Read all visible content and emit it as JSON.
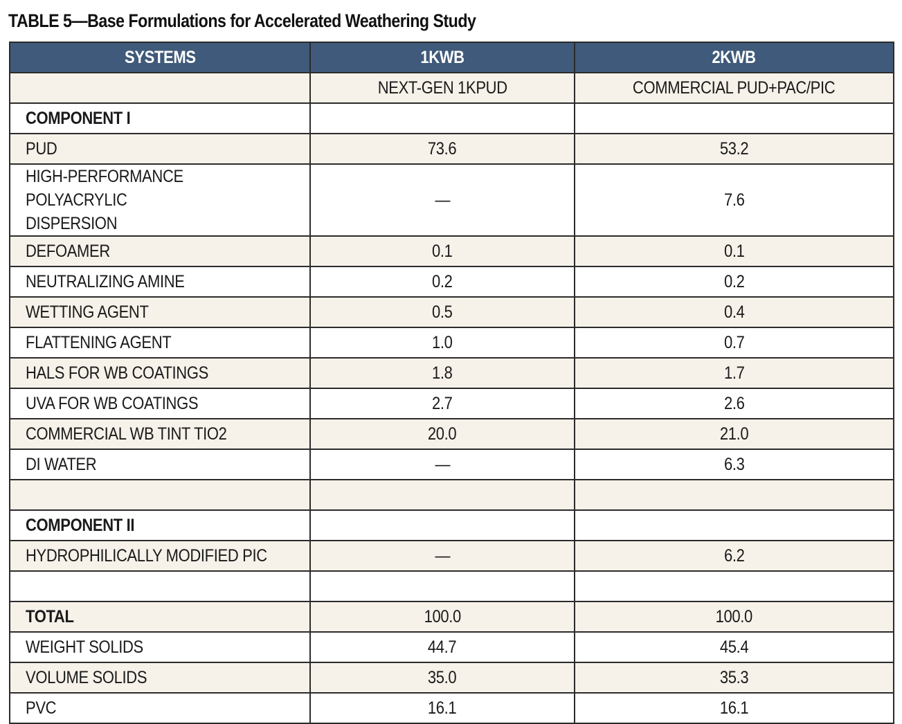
{
  "title": "TABLE 5—Base Formulations for Accelerated Weathering Study",
  "columns": [
    "SYSTEMS",
    "1KWB",
    "2KWB"
  ],
  "subheader": [
    "",
    "NEXT-GEN 1KPUD",
    "COMMERCIAL PUD+PAC/PIC"
  ],
  "rows": [
    {
      "label": "COMPONENT I",
      "v1": "",
      "v2": ""
    },
    {
      "label": "PUD",
      "v1": "73.6",
      "v2": "53.2"
    },
    {
      "label_line1": "HIGH-PERFORMANCE POLYACRYLIC",
      "label_line2": "DISPERSION",
      "v1": "—",
      "v2": "7.6"
    },
    {
      "label": "DEFOAMER",
      "v1": "0.1",
      "v2": "0.1"
    },
    {
      "label": "NEUTRALIZING AMINE",
      "v1": "0.2",
      "v2": "0.2"
    },
    {
      "label": "WETTING AGENT",
      "v1": "0.5",
      "v2": "0.4"
    },
    {
      "label": "FLATTENING AGENT",
      "v1": "1.0",
      "v2": "0.7"
    },
    {
      "label": "HALS FOR WB COATINGS",
      "v1": "1.8",
      "v2": "1.7"
    },
    {
      "label": "UVA FOR WB COATINGS",
      "v1": "2.7",
      "v2": "2.6"
    },
    {
      "label": "COMMERCIAL WB TINT TIO2",
      "v1": "20.0",
      "v2": "21.0"
    },
    {
      "label": "DI WATER",
      "v1": "—",
      "v2": "6.3"
    },
    {
      "label": "",
      "v1": "",
      "v2": ""
    },
    {
      "label": "COMPONENT II",
      "v1": "",
      "v2": ""
    },
    {
      "label": "HYDROPHILICALLY MODIFIED PIC",
      "v1": "—",
      "v2": "6.2"
    },
    {
      "label": "",
      "v1": "",
      "v2": ""
    },
    {
      "label": "TOTAL",
      "v1": "100.0",
      "v2": "100.0"
    },
    {
      "label": "WEIGHT SOLIDS",
      "v1": "44.7",
      "v2": "45.4"
    },
    {
      "label": "VOLUME SOLIDS",
      "v1": "35.0",
      "v2": "35.3"
    },
    {
      "label": "PVC",
      "v1": "16.1",
      "v2": "16.1"
    }
  ],
  "colors": {
    "header_bg": "#3f5a7a",
    "shade_bg": "#f6f1e9",
    "border": "#2b2b2b"
  }
}
